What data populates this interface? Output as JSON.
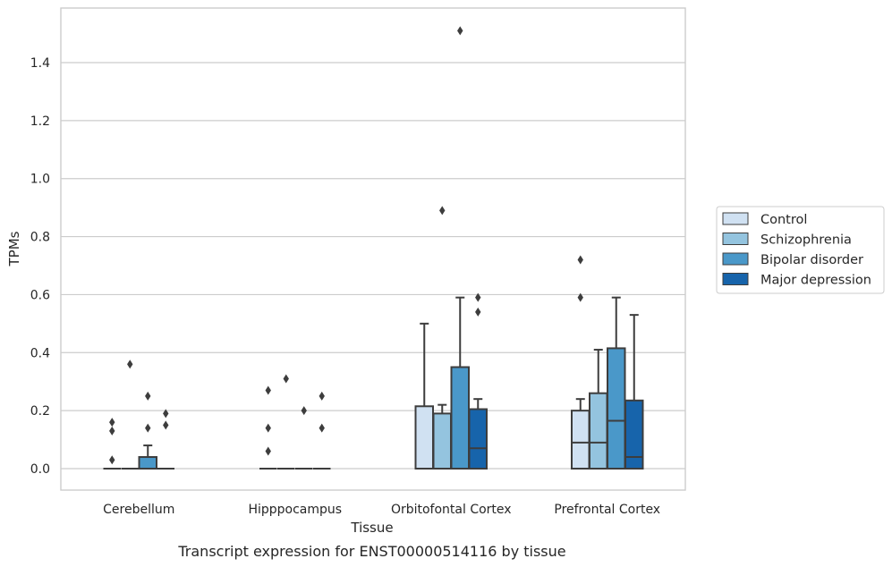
{
  "chart_data": {
    "type": "box",
    "title": "",
    "caption": "Transcript expression for ENST00000514116 by tissue",
    "xlabel": "Tissue",
    "ylabel": "TPMs",
    "ylim": [
      -0.073,
      1.587
    ],
    "yticks": [
      0.0,
      0.2,
      0.4,
      0.6,
      0.8,
      1.0,
      1.2,
      1.4
    ],
    "ytick_labels": [
      "0.0",
      "0.2",
      "0.4",
      "0.6",
      "0.8",
      "1.0",
      "1.2",
      "1.4"
    ],
    "categories": [
      "Cerebellum",
      "Hipppocampus",
      "Orbitofontal Cortex",
      "Prefrontal Cortex"
    ],
    "grid": "horizontal",
    "legend_position": "right",
    "series": [
      {
        "name": "Control",
        "color": "#d0e1f2",
        "boxes": [
          {
            "q1": 0,
            "median": 0,
            "q3": 0,
            "whisker_low": 0,
            "whisker_high": 0,
            "fliers": [
              0.16,
              0.13,
              0.03
            ]
          },
          {
            "q1": 0,
            "median": 0,
            "q3": 0,
            "whisker_low": 0,
            "whisker_high": 0,
            "fliers": [
              0.27,
              0.14,
              0.06
            ]
          },
          {
            "q1": 0,
            "median": 0,
            "q3": 0.215,
            "whisker_low": 0,
            "whisker_high": 0.5,
            "fliers": []
          },
          {
            "q1": 0,
            "median": 0.09,
            "q3": 0.2,
            "whisker_low": 0,
            "whisker_high": 0.24,
            "fliers": [
              0.72,
              0.59
            ]
          }
        ]
      },
      {
        "name": "Schizophrenia",
        "color": "#94c4df",
        "boxes": [
          {
            "q1": 0,
            "median": 0,
            "q3": 0,
            "whisker_low": 0,
            "whisker_high": 0,
            "fliers": [
              0.36
            ]
          },
          {
            "q1": 0,
            "median": 0,
            "q3": 0,
            "whisker_low": 0,
            "whisker_high": 0,
            "fliers": [
              0.31
            ]
          },
          {
            "q1": 0,
            "median": 0,
            "q3": 0.19,
            "whisker_low": 0,
            "whisker_high": 0.22,
            "fliers": [
              0.89
            ]
          },
          {
            "q1": 0,
            "median": 0.09,
            "q3": 0.26,
            "whisker_low": 0,
            "whisker_high": 0.41,
            "fliers": []
          }
        ]
      },
      {
        "name": "Bipolar disorder",
        "color": "#4a98c9",
        "boxes": [
          {
            "q1": 0,
            "median": 0,
            "q3": 0.04,
            "whisker_low": 0,
            "whisker_high": 0.08,
            "fliers": [
              0.25,
              0.14
            ]
          },
          {
            "q1": 0,
            "median": 0,
            "q3": 0,
            "whisker_low": 0,
            "whisker_high": 0,
            "fliers": [
              0.2
            ]
          },
          {
            "q1": 0,
            "median": 0,
            "q3": 0.35,
            "whisker_low": 0,
            "whisker_high": 0.59,
            "fliers": [
              1.51
            ]
          },
          {
            "q1": 0,
            "median": 0.165,
            "q3": 0.415,
            "whisker_low": 0,
            "whisker_high": 0.59,
            "fliers": []
          }
        ]
      },
      {
        "name": "Major depression",
        "color": "#1764ab",
        "boxes": [
          {
            "q1": 0,
            "median": 0,
            "q3": 0,
            "whisker_low": 0,
            "whisker_high": 0,
            "fliers": [
              0.19,
              0.15
            ]
          },
          {
            "q1": 0,
            "median": 0,
            "q3": 0,
            "whisker_low": 0,
            "whisker_high": 0,
            "fliers": [
              0.25,
              0.14
            ]
          },
          {
            "q1": 0,
            "median": 0.07,
            "q3": 0.205,
            "whisker_low": 0,
            "whisker_high": 0.24,
            "fliers": [
              0.59,
              0.54
            ]
          },
          {
            "q1": 0,
            "median": 0.04,
            "q3": 0.235,
            "whisker_low": 0,
            "whisker_high": 0.53,
            "fliers": []
          }
        ]
      }
    ]
  }
}
